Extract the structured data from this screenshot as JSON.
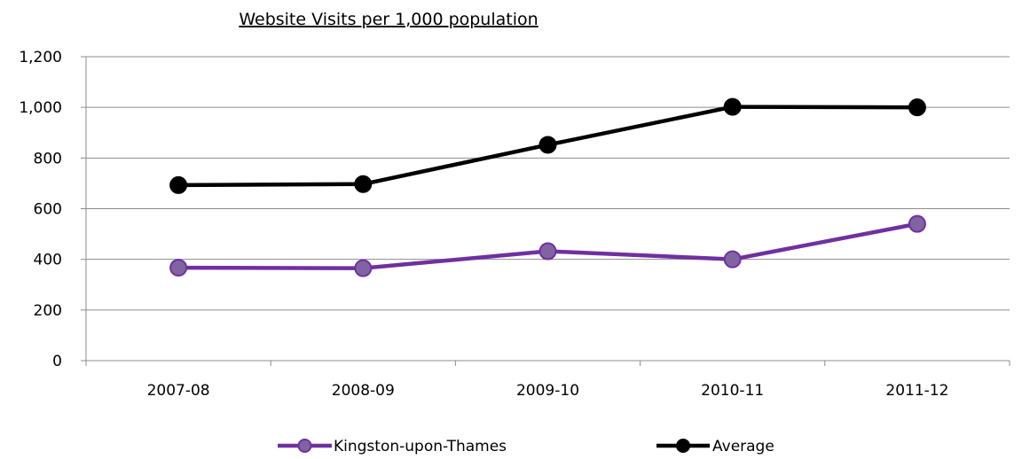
{
  "chart_data": {
    "type": "line",
    "title": "Website Visits per 1,000 population",
    "xlabel": "",
    "ylabel": "",
    "categories": [
      "2007-08",
      "2008-09",
      "2009-10",
      "2010-11",
      "2011-12"
    ],
    "series": [
      {
        "name": "Kingston-upon-Thames",
        "values": [
          367,
          365,
          432,
          400,
          540
        ],
        "color": "#7030a0",
        "marker_fill": "#8064a2"
      },
      {
        "name": "Average",
        "values": [
          693,
          697,
          852,
          1002,
          1000
        ],
        "color": "#000000",
        "marker_fill": "#000000"
      }
    ],
    "ylim": [
      0,
      1200
    ],
    "yticks": [
      0,
      200,
      400,
      600,
      800,
      1000,
      1200
    ],
    "ytick_labels": [
      "0",
      "200",
      "400",
      "600",
      "800",
      "1,000",
      "1,200"
    ],
    "grid": true,
    "legend_position": "bottom"
  }
}
